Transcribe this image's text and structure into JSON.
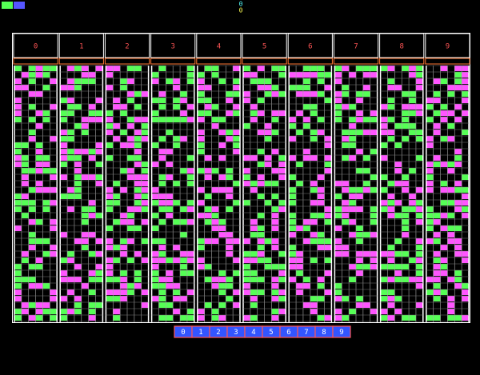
{
  "header": {
    "counters": [
      "0",
      "0"
    ]
  },
  "columns": [
    "0",
    "1",
    "2",
    "3",
    "4",
    "5",
    "6",
    "7",
    "8",
    "9"
  ],
  "keypad": [
    "0",
    "1",
    "2",
    "3",
    "4",
    "5",
    "6",
    "7",
    "8",
    "9"
  ]
}
